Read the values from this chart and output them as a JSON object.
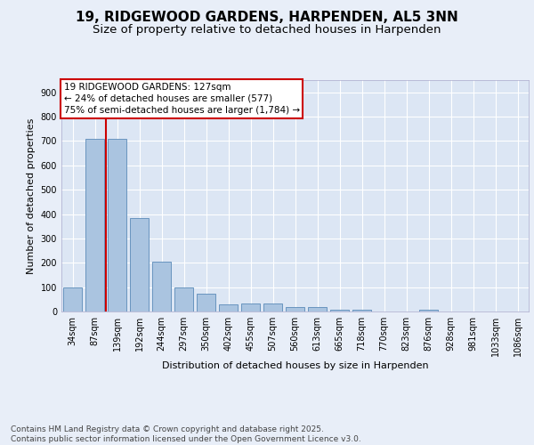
{
  "title": "19, RIDGEWOOD GARDENS, HARPENDEN, AL5 3NN",
  "subtitle": "Size of property relative to detached houses in Harpenden",
  "xlabel": "Distribution of detached houses by size in Harpenden",
  "ylabel": "Number of detached properties",
  "categories": [
    "34sqm",
    "87sqm",
    "139sqm",
    "192sqm",
    "244sqm",
    "297sqm",
    "350sqm",
    "402sqm",
    "455sqm",
    "507sqm",
    "560sqm",
    "613sqm",
    "665sqm",
    "718sqm",
    "770sqm",
    "823sqm",
    "876sqm",
    "928sqm",
    "981sqm",
    "1033sqm",
    "1086sqm"
  ],
  "values": [
    100,
    710,
    710,
    383,
    205,
    100,
    73,
    31,
    33,
    33,
    17,
    18,
    8,
    7,
    0,
    0,
    7,
    0,
    0,
    0,
    0
  ],
  "bar_color": "#aac4e0",
  "bar_edge_color": "#5a8ab8",
  "vline_x": 1.5,
  "vline_color": "#cc0000",
  "annotation_text": "19 RIDGEWOOD GARDENS: 127sqm\n← 24% of detached houses are smaller (577)\n75% of semi-detached houses are larger (1,784) →",
  "annotation_box_color": "#ffffff",
  "annotation_box_edge": "#cc0000",
  "bg_color": "#e8eef8",
  "plot_bg_color": "#dce6f4",
  "grid_color": "#ffffff",
  "footer": "Contains HM Land Registry data © Crown copyright and database right 2025.\nContains public sector information licensed under the Open Government Licence v3.0.",
  "ylim": [
    0,
    950
  ],
  "yticks": [
    0,
    100,
    200,
    300,
    400,
    500,
    600,
    700,
    800,
    900
  ],
  "title_fontsize": 11,
  "subtitle_fontsize": 9.5,
  "axis_label_fontsize": 8,
  "tick_fontsize": 7,
  "annotation_fontsize": 7.5,
  "footer_fontsize": 6.5
}
